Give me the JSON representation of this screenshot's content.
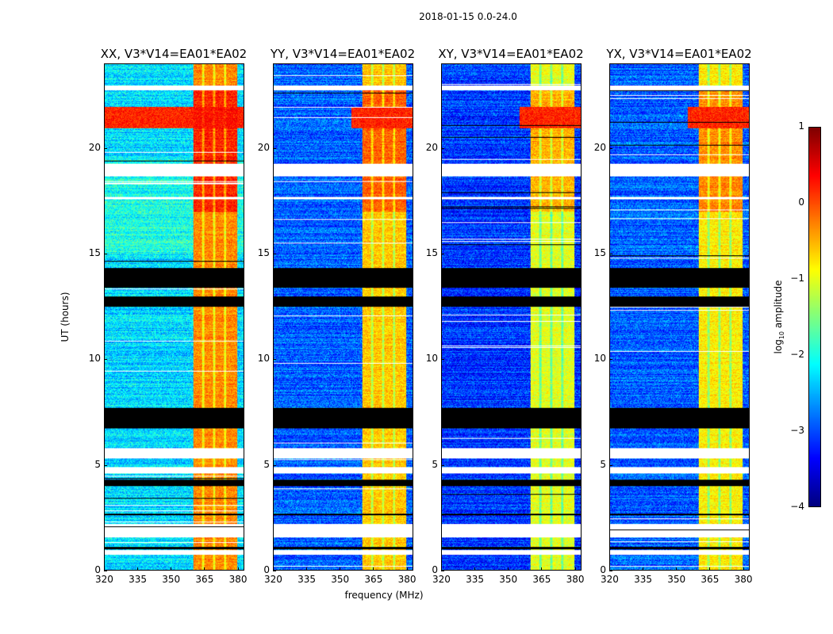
{
  "chart_data": {
    "type": "heatmap",
    "title": "2018-01-15 0.0-24.0",
    "xlabel": "frequency (MHz)",
    "ylabel": "UT (hours)",
    "xlim": [
      320,
      383
    ],
    "ylim": [
      0,
      24
    ],
    "xticks": [
      "320",
      "335",
      "350",
      "365",
      "380"
    ],
    "xtick_values": [
      320,
      335,
      350,
      365,
      380
    ],
    "yticks": [
      "0",
      "5",
      "10",
      "15",
      "20"
    ],
    "ytick_values": [
      0,
      5,
      10,
      15,
      20
    ],
    "panels": [
      {
        "title": "XX, V3*V14=EA01*EA02",
        "background_log_amp": -2.3,
        "band_log_amp": -0.3
      },
      {
        "title": "YY, V3*V14=EA01*EA02",
        "background_log_amp": -2.9,
        "band_log_amp": -0.6
      },
      {
        "title": "XY, V3*V14=EA01*EA02",
        "background_log_amp": -3.1,
        "band_log_amp": -1.0
      },
      {
        "title": "YX, V3*V14=EA01*EA02",
        "background_log_amp": -2.9,
        "band_log_amp": -0.8
      }
    ],
    "bright_band_MHz": [
      360,
      380
    ],
    "channel_gaps_MHz": [
      364.5,
      369.5,
      374.5
    ],
    "strong_rfi_hours": [
      21.0,
      22.0
    ],
    "flagged_black_hours": [
      [
        13.4,
        14.35
      ],
      [
        12.5,
        13.0
      ],
      [
        6.75,
        7.7
      ],
      [
        4.0,
        4.3
      ],
      [
        2.6,
        2.7
      ],
      [
        1.0,
        1.1
      ]
    ],
    "missing_white_hours": [
      [
        18.7,
        19.3
      ],
      [
        5.3,
        5.8
      ],
      [
        4.6,
        4.9
      ],
      [
        1.55,
        2.2
      ],
      [
        0.75,
        0.95
      ],
      [
        22.8,
        23.0
      ],
      [
        17.6,
        17.7
      ]
    ],
    "colorbar": {
      "label": "log10 amplitude",
      "label_main": "log",
      "label_sub": "10",
      "label_rest": " amplitude",
      "range": [
        -4,
        1
      ],
      "ticks": [
        "1",
        "0",
        "−1",
        "−2",
        "−3",
        "−4"
      ],
      "tick_values": [
        1,
        0,
        -1,
        -2,
        -3,
        -4
      ],
      "colormap": "jet"
    }
  }
}
